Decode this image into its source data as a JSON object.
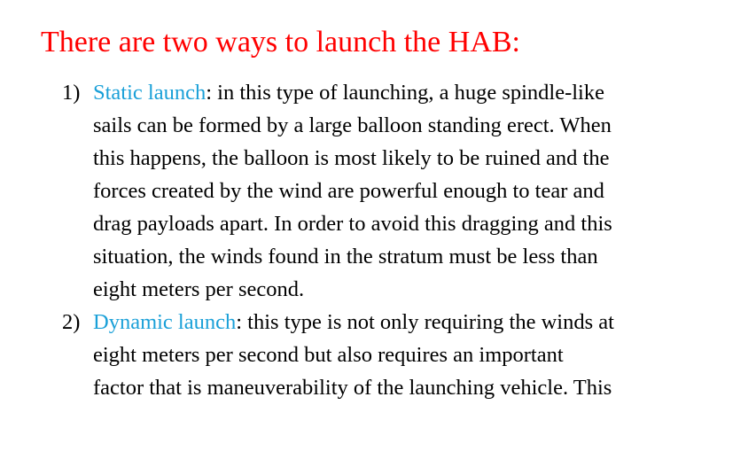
{
  "colors": {
    "heading": "#ff0000",
    "term": "#1aa0d8",
    "body_text": "#000000",
    "background": "#ffffff"
  },
  "heading": "There are two ways to launch the HAB:",
  "items": [
    {
      "number": "1)",
      "term": "Static launch",
      "lines": [
        ": in this type of launching, a huge spindle-like",
        "sails can be formed by a large balloon standing erect. When",
        "this happens, the balloon is most likely to be ruined and the",
        "forces created by the wind are powerful enough to tear and",
        "drag payloads apart. In order to avoid this dragging and this",
        "situation, the winds found in the stratum must be less than",
        "eight meters per second."
      ]
    },
    {
      "number": "2)",
      "term": "Dynamic launch",
      "lines": [
        ": this type is not only requiring the winds at",
        "eight meters per second but also requires an important",
        "factor that is maneuverability of the launching vehicle. This"
      ]
    }
  ]
}
